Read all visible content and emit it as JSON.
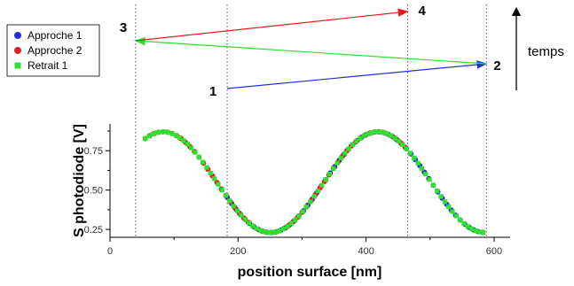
{
  "chart_data": {
    "type": "scatter",
    "title": "",
    "xlabel": "position surface [nm]",
    "ylabel": "S photodiode [V]",
    "xlim": [
      0,
      625
    ],
    "ylim": [
      0.2,
      0.92
    ],
    "xticks": [
      0,
      200,
      400,
      600
    ],
    "yticks": [
      0.25,
      0.5,
      0.75
    ],
    "tick_labels_x": [
      "0",
      "200",
      "400",
      "600"
    ],
    "tick_labels_y": [
      "0.25",
      "0.50",
      "0.75"
    ],
    "legend_position": "top-left",
    "reference_lines_x": [
      40,
      183,
      465,
      588
    ],
    "series": [
      {
        "name": "Approche 1",
        "color": "#1f2fdc",
        "marker": "circle",
        "x_range": [
          183,
          588
        ],
        "step": 7,
        "count": 58
      },
      {
        "name": "Approche 2",
        "color": "#e02020",
        "marker": "circle",
        "x_range": [
          55,
          465
        ],
        "step": 7,
        "count": 59
      },
      {
        "name": "Retrait 1",
        "color": "#2fe02f",
        "marker": "square",
        "x_range": [
          55,
          588
        ],
        "step": 6,
        "count": 89
      }
    ],
    "model": {
      "offset": 0.55,
      "amplitude": 0.32,
      "period": 335,
      "peak_x": 418
    }
  },
  "diagram": {
    "steps": [
      {
        "label": "1",
        "x": 183,
        "level": 0
      },
      {
        "label": "2",
        "x": 588,
        "level": 1
      },
      {
        "label": "3",
        "x": 40,
        "level": 2
      },
      {
        "label": "4",
        "x": 465,
        "level": 3
      }
    ],
    "arrows": [
      {
        "from": "1",
        "to": "2",
        "color": "#1f2fdc"
      },
      {
        "from": "2",
        "to": "3",
        "color": "#2fe02f"
      },
      {
        "from": "3",
        "to": "4",
        "color": "#e02020"
      }
    ],
    "time_label": "temps"
  }
}
